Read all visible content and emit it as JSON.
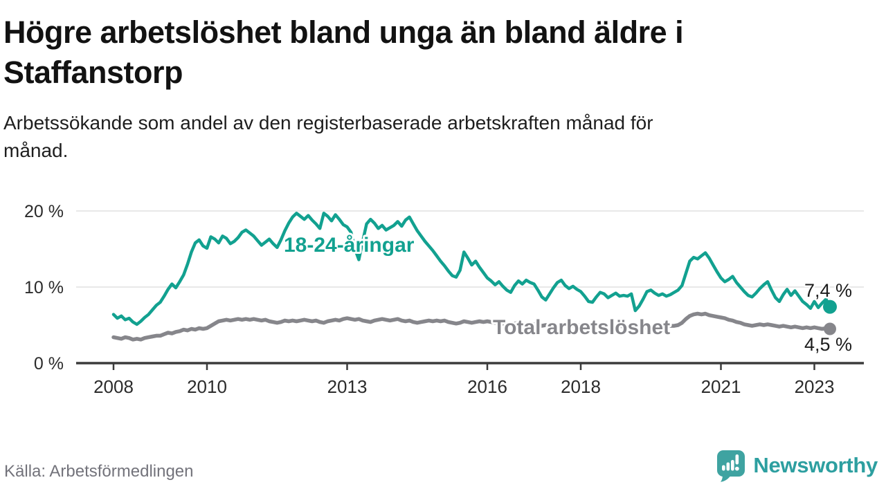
{
  "header": {
    "title": "Högre arbetslöshet bland unga än bland äldre i\nStaffanstorp",
    "subtitle": "Arbetssökande som andel av den registerbaserade arbetskraften månad för\nmånad."
  },
  "footer": {
    "source": "Källa: Arbetsförmedlingen",
    "brand": "Newsworthy"
  },
  "colors": {
    "youth_line": "#12A190",
    "total_line": "#86868B",
    "axis": "#3B3B3B",
    "grid": "#E8E8E8",
    "value_text": "#1C1C1C",
    "tick_text": "#2B2B2B",
    "brand_teal": "#3FA3A1"
  },
  "chart_data": {
    "type": "line",
    "title": "Högre arbetslöshet bland unga än bland äldre i Staffanstorp",
    "subtitle": "Arbetssökande som andel av den registerbaserade arbetskraften månad för månad.",
    "source": "Källa: Arbetsförmedlingen",
    "x_unit": "month",
    "x_start": 2008.0,
    "x_end": 2023.333,
    "x_ticks": [
      2008,
      2010,
      2013,
      2016,
      2018,
      2021,
      2023
    ],
    "ylim": [
      0,
      20
    ],
    "y_ticks": [
      {
        "v": 20,
        "label": "20 %"
      },
      {
        "v": 10,
        "label": "10 %"
      },
      {
        "v": 0,
        "label": "0 %"
      }
    ],
    "grid": "horizontal",
    "legend": "inline-labels",
    "series": [
      {
        "name": "18-24-åringar",
        "color": "#12A190",
        "end_label": "7,4 %",
        "end_value": 7.4,
        "values": [
          6.4,
          5.9,
          6.2,
          5.7,
          5.9,
          5.4,
          5.1,
          5.5,
          6.0,
          6.4,
          7.0,
          7.6,
          8.0,
          8.8,
          9.7,
          10.4,
          9.9,
          10.7,
          11.6,
          13.0,
          14.6,
          15.8,
          16.2,
          15.4,
          15.1,
          16.6,
          16.3,
          15.8,
          16.7,
          16.4,
          15.7,
          16.0,
          16.5,
          17.2,
          17.5,
          17.1,
          16.7,
          16.1,
          15.5,
          15.9,
          16.3,
          15.7,
          15.2,
          16.2,
          17.4,
          18.4,
          19.2,
          19.7,
          19.3,
          18.9,
          19.4,
          18.8,
          18.3,
          17.7,
          19.7,
          19.3,
          18.7,
          19.5,
          18.9,
          18.2,
          17.9,
          17.2,
          15.0,
          13.6,
          16.0,
          18.3,
          18.9,
          18.4,
          17.7,
          18.1,
          17.5,
          17.8,
          18.1,
          18.6,
          18.0,
          18.8,
          19.2,
          18.3,
          17.4,
          16.7,
          16.0,
          15.4,
          14.8,
          14.1,
          13.4,
          12.8,
          12.1,
          11.5,
          11.3,
          12.2,
          14.6,
          13.8,
          12.9,
          13.4,
          12.6,
          11.9,
          11.2,
          10.8,
          10.3,
          10.7,
          10.1,
          9.6,
          9.3,
          10.2,
          10.8,
          10.4,
          10.9,
          10.6,
          10.4,
          9.6,
          8.7,
          8.3,
          9.1,
          9.9,
          10.6,
          10.9,
          10.2,
          9.8,
          10.1,
          9.7,
          9.4,
          8.8,
          8.1,
          8.0,
          8.7,
          9.3,
          9.1,
          8.6,
          8.9,
          9.2,
          8.8,
          8.9,
          8.8,
          9.1,
          6.9,
          7.5,
          8.4,
          9.4,
          9.6,
          9.2,
          8.9,
          9.1,
          8.8,
          9.0,
          9.3,
          9.6,
          10.2,
          11.8,
          13.4,
          13.9,
          13.7,
          14.1,
          14.5,
          13.8,
          12.9,
          12.0,
          11.2,
          10.7,
          11.0,
          11.4,
          10.6,
          10.0,
          9.4,
          8.9,
          8.7,
          9.2,
          9.8,
          10.3,
          10.7,
          9.6,
          8.6,
          8.1,
          9.0,
          9.7,
          8.9,
          9.5,
          8.8,
          8.1,
          7.7,
          7.2,
          8.1,
          7.3,
          7.9,
          8.4,
          7.4
        ]
      },
      {
        "name": "Total arbetslöshet",
        "color": "#86868B",
        "end_label": "4,5 %",
        "end_value": 4.5,
        "values": [
          3.4,
          3.3,
          3.2,
          3.4,
          3.3,
          3.1,
          3.2,
          3.1,
          3.3,
          3.4,
          3.5,
          3.6,
          3.6,
          3.8,
          4.0,
          3.9,
          4.1,
          4.2,
          4.4,
          4.3,
          4.5,
          4.4,
          4.6,
          4.5,
          4.6,
          4.9,
          5.2,
          5.5,
          5.6,
          5.7,
          5.6,
          5.7,
          5.8,
          5.7,
          5.8,
          5.7,
          5.8,
          5.7,
          5.6,
          5.7,
          5.5,
          5.4,
          5.3,
          5.4,
          5.6,
          5.5,
          5.6,
          5.5,
          5.6,
          5.7,
          5.6,
          5.5,
          5.6,
          5.4,
          5.3,
          5.5,
          5.6,
          5.7,
          5.6,
          5.8,
          5.9,
          5.8,
          5.7,
          5.8,
          5.6,
          5.5,
          5.4,
          5.6,
          5.7,
          5.8,
          5.7,
          5.6,
          5.7,
          5.8,
          5.6,
          5.5,
          5.6,
          5.4,
          5.3,
          5.4,
          5.5,
          5.6,
          5.5,
          5.6,
          5.5,
          5.6,
          5.4,
          5.3,
          5.2,
          5.3,
          5.5,
          5.4,
          5.3,
          5.4,
          5.5,
          5.4,
          5.5,
          5.4,
          5.3,
          5.4,
          5.2,
          5.1,
          5.0,
          5.2,
          5.3,
          5.2,
          5.1,
          5.2,
          5.1,
          5.0,
          4.9,
          5.0,
          4.9,
          4.8,
          4.9,
          5.0,
          5.1,
          5.0,
          4.9,
          5.0,
          4.9,
          4.8,
          4.9,
          4.8,
          4.7,
          4.8,
          4.7,
          4.8,
          4.9,
          4.8,
          4.9,
          4.8,
          4.8,
          4.7,
          4.6,
          4.7,
          4.6,
          4.7,
          4.8,
          4.7,
          4.8,
          4.9,
          4.8,
          4.9,
          4.9,
          5.0,
          5.3,
          5.8,
          6.2,
          6.4,
          6.5,
          6.4,
          6.5,
          6.3,
          6.2,
          6.1,
          6.0,
          5.9,
          5.7,
          5.6,
          5.4,
          5.3,
          5.1,
          5.0,
          4.9,
          5.0,
          5.1,
          5.0,
          5.1,
          5.0,
          4.9,
          4.8,
          4.9,
          4.8,
          4.7,
          4.8,
          4.7,
          4.6,
          4.7,
          4.6,
          4.7,
          4.6,
          4.5,
          4.6,
          4.5
        ]
      }
    ]
  }
}
